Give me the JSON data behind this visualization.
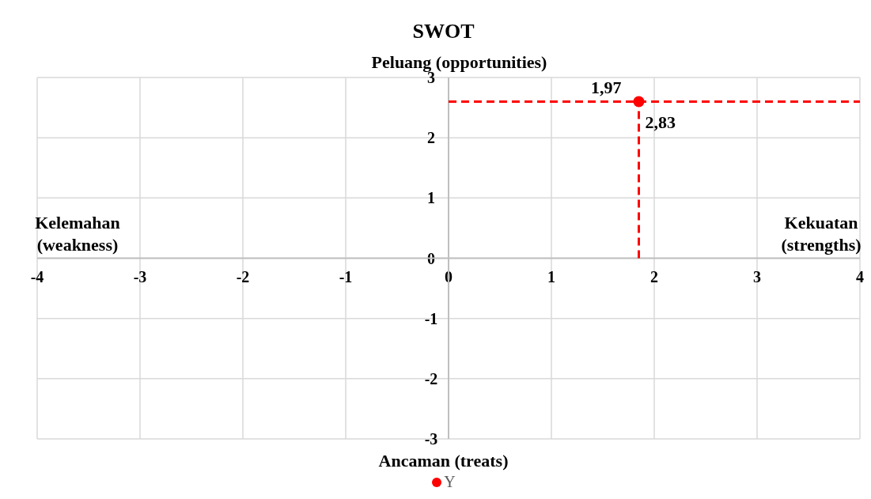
{
  "chart_data": {
    "type": "scatter",
    "title": "SWOT",
    "annotations": [
      "Peluang (opportunities)",
      "Ancaman (treats)",
      "Kelemahan (weakness)",
      "Kekuatan (strengths)",
      {
        "text": "1,97",
        "x": 1.85,
        "y": 2.6
      },
      {
        "text": "2,83",
        "x": 1.85,
        "y": 2.6
      }
    ],
    "series": [
      {
        "type": "scatter",
        "name": "Y",
        "color": "#ff0000",
        "x": [
          1.85
        ],
        "values": [
          2.6
        ],
        "marker": "circle"
      },
      {
        "type": "line",
        "color": "#ff0000",
        "x": [
          1.85,
          1.85
        ],
        "values": [
          0,
          2.6
        ],
        "line_style": "dashed",
        "marker": "none"
      },
      {
        "type": "line",
        "color": "#ff0000",
        "x": [
          0,
          4
        ],
        "values": [
          2.6,
          2.6
        ],
        "line_style": "dashed",
        "marker": "none"
      }
    ],
    "xlim": [
      -4,
      4
    ],
    "xticks": [
      -4,
      -3,
      -2,
      -1,
      0,
      1,
      2,
      3,
      4
    ],
    "ylim": [
      -3,
      3
    ],
    "yticks": [
      -3,
      -2,
      -1,
      0,
      1,
      2,
      3
    ],
    "grid": true,
    "legend": "bottom"
  }
}
